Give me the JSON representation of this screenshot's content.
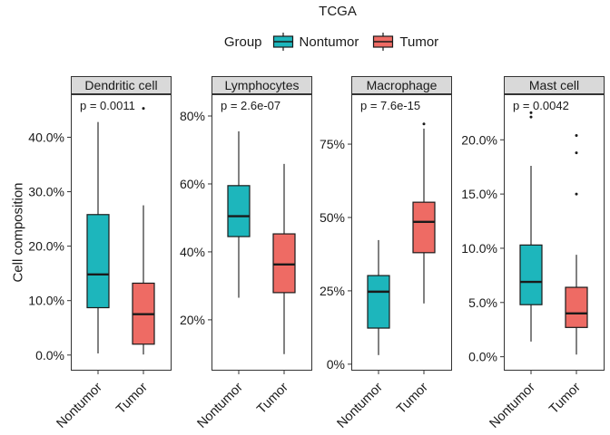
{
  "title": "TCGA",
  "y_axis_label": "Cell composition",
  "legend": {
    "title": "Group",
    "items": [
      {
        "label": "Nontumor",
        "color": "#1DB6BC"
      },
      {
        "label": "Tumor",
        "color": "#EE6B64"
      }
    ]
  },
  "colors": {
    "nontumor": "#1DB6BC",
    "tumor": "#EE6B64",
    "box_border": "#1a1a1a",
    "panel_border": "#333333",
    "strip_bg": "#D9D9D9"
  },
  "chart_data": {
    "type": "boxplot",
    "title": "TCGA",
    "ylabel": "Cell composition",
    "groups": [
      "Nontumor",
      "Tumor"
    ],
    "legend_position": "top",
    "grid": false,
    "facets": [
      {
        "label": "Dendritic cell",
        "p_label": "p = 0.0011",
        "ylim": [
          -2.7,
          47.9
        ],
        "ticks": [
          {
            "v": 0,
            "label": "0.0%"
          },
          {
            "v": 10,
            "label": "10.0%"
          },
          {
            "v": 20,
            "label": "20.0%"
          },
          {
            "v": 30,
            "label": "30.0%"
          },
          {
            "v": 40,
            "label": "40.0%"
          }
        ],
        "boxes": [
          {
            "group": "Nontumor",
            "whisker_low": 0.3,
            "q1": 8.7,
            "median": 14.8,
            "q3": 25.8,
            "whisker_high": 42.8,
            "outliers": []
          },
          {
            "group": "Tumor",
            "whisker_low": 0.1,
            "q1": 2.0,
            "median": 7.5,
            "q3": 13.2,
            "whisker_high": 27.5,
            "outliers": [
              45.3
            ]
          }
        ]
      },
      {
        "label": "Lymphocytes",
        "p_label": "p = 2.6e-07",
        "ylim": [
          5.3,
          86.4
        ],
        "ticks": [
          {
            "v": 20,
            "label": "20%"
          },
          {
            "v": 40,
            "label": "40%"
          },
          {
            "v": 60,
            "label": "60%"
          },
          {
            "v": 80,
            "label": "80%"
          }
        ],
        "boxes": [
          {
            "group": "Nontumor",
            "whisker_low": 26.5,
            "q1": 44.5,
            "median": 50.5,
            "q3": 59.5,
            "whisker_high": 75.5,
            "outliers": []
          },
          {
            "group": "Tumor",
            "whisker_low": 9.9,
            "q1": 28.0,
            "median": 36.3,
            "q3": 45.3,
            "whisker_high": 65.9,
            "outliers": []
          }
        ]
      },
      {
        "label": "Macrophage",
        "p_label": "p = 7.6e-15",
        "ylim": [
          -1.9,
          92.0
        ],
        "ticks": [
          {
            "v": 0,
            "label": "0%"
          },
          {
            "v": 25,
            "label": "25%"
          },
          {
            "v": 50,
            "label": "50%"
          },
          {
            "v": 75,
            "label": "75%"
          }
        ],
        "boxes": [
          {
            "group": "Nontumor",
            "whisker_low": 3.1,
            "q1": 12.3,
            "median": 24.7,
            "q3": 30.2,
            "whisker_high": 42.3,
            "outliers": []
          },
          {
            "group": "Tumor",
            "whisker_low": 20.7,
            "q1": 38.0,
            "median": 48.5,
            "q3": 55.2,
            "whisker_high": 80.3,
            "outliers": [
              81.9
            ]
          }
        ]
      },
      {
        "label": "Mast cell",
        "p_label": "p = 0.0042",
        "ylim": [
          -1.2,
          24.2
        ],
        "ticks": [
          {
            "v": 0,
            "label": "0.0%"
          },
          {
            "v": 5,
            "label": "5.0%"
          },
          {
            "v": 10,
            "label": "10.0%"
          },
          {
            "v": 15,
            "label": "15.0%"
          },
          {
            "v": 20,
            "label": "20.0%"
          }
        ],
        "boxes": [
          {
            "group": "Nontumor",
            "whisker_low": 1.4,
            "q1": 4.8,
            "median": 6.9,
            "q3": 10.3,
            "whisker_high": 17.6,
            "outliers": [
              22.1,
              22.5
            ]
          },
          {
            "group": "Tumor",
            "whisker_low": 0.2,
            "q1": 2.7,
            "median": 4.0,
            "q3": 6.4,
            "whisker_high": 9.4,
            "outliers": [
              15.0,
              18.8,
              20.4
            ]
          }
        ]
      }
    ]
  }
}
